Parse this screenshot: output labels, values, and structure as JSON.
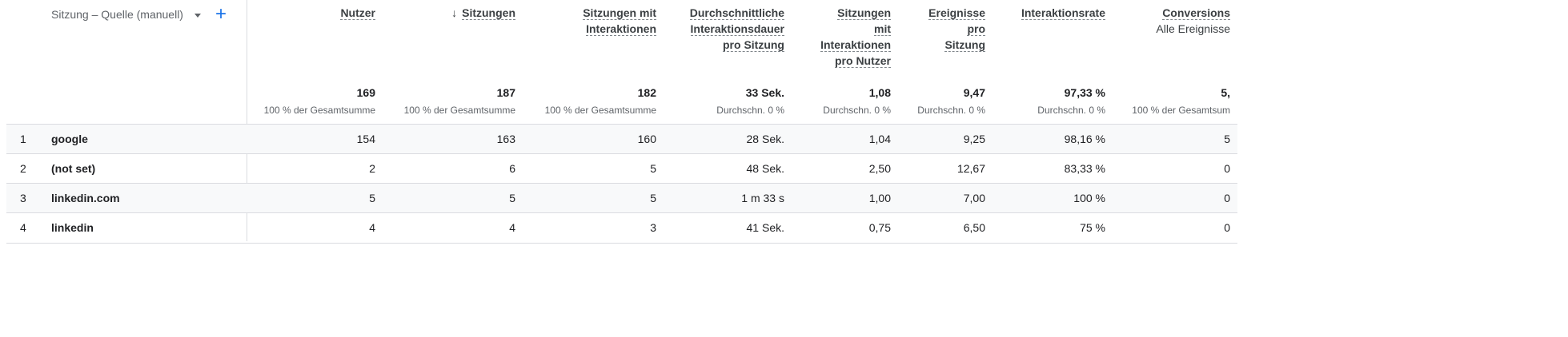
{
  "dimension": {
    "label": "Sitzung – Quelle (manuell)",
    "add_symbol": "+"
  },
  "columns": [
    {
      "key": "users",
      "label": "Nutzer",
      "total": "169",
      "total_sub": "100 % der Gesamtsumme"
    },
    {
      "key": "sessions",
      "label": "Sitzungen",
      "sorted_icon": "arrow-down-icon",
      "sort_glyph": "↓",
      "total": "187",
      "total_sub": "100 % der Gesamtsumme"
    },
    {
      "key": "engaged",
      "label": "Sitzungen mit\nInteraktionen",
      "total": "182",
      "total_sub": "100 % der Gesamtsumme"
    },
    {
      "key": "avg_duration",
      "label": "Durchschnittliche\nInteraktionsdauer\npro Sitzung",
      "total": "33 Sek.",
      "total_sub": "Durchschn. 0 %"
    },
    {
      "key": "engaged_per_user",
      "label": "Sitzungen\nmit\nInteraktionen\npro Nutzer",
      "total": "1,08",
      "total_sub": "Durchschn. 0 %"
    },
    {
      "key": "events_per_session",
      "label": "Ereignisse\npro\nSitzung",
      "total": "9,47",
      "total_sub": "Durchschn. 0 %"
    },
    {
      "key": "engagement_rate",
      "label": "Interaktionsrate",
      "total": "97,33 %",
      "total_sub": "Durchschn. 0 %"
    },
    {
      "key": "conversions",
      "label": "Conversions",
      "sublabel": "Alle Ereignisse",
      "total": "5,",
      "total_sub": "100 % der Gesamtsum"
    }
  ],
  "rows": [
    {
      "n": "1",
      "source": "google",
      "cells": [
        "154",
        "163",
        "160",
        "28 Sek.",
        "1,04",
        "9,25",
        "98,16 %",
        "5"
      ]
    },
    {
      "n": "2",
      "source": "(not set)",
      "cells": [
        "2",
        "6",
        "5",
        "48 Sek.",
        "2,50",
        "12,67",
        "83,33 %",
        "0"
      ]
    },
    {
      "n": "3",
      "source": "linkedin.com",
      "cells": [
        "5",
        "5",
        "5",
        "1 m 33 s",
        "1,00",
        "7,00",
        "100 %",
        "0"
      ]
    },
    {
      "n": "4",
      "source": "linkedin",
      "cells": [
        "4",
        "4",
        "3",
        "41 Sek.",
        "0,75",
        "6,50",
        "75 %",
        "0"
      ]
    }
  ],
  "colors": {
    "accent": "#1a73e8",
    "row_alt": "#f8f9fa",
    "divider": "#dadce0"
  }
}
